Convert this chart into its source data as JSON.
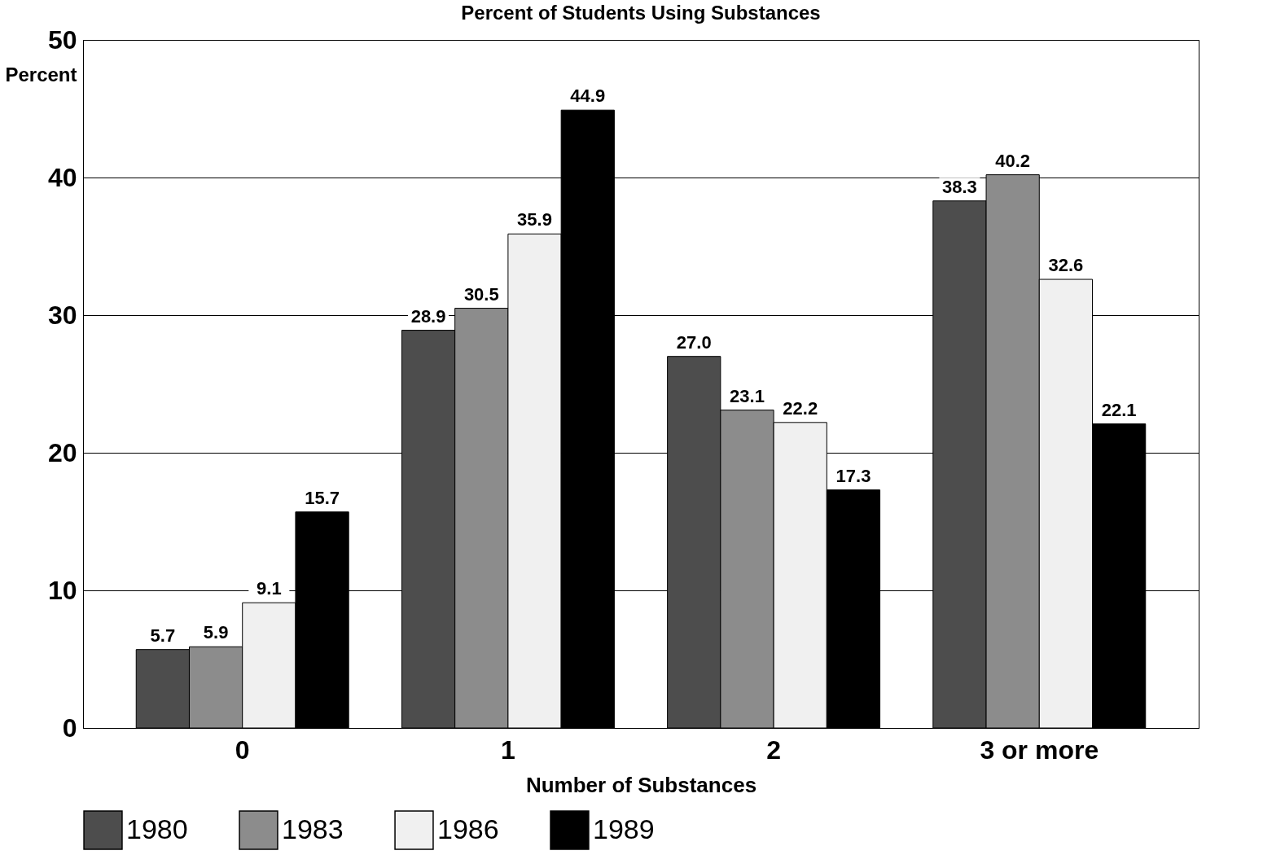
{
  "chart_data": {
    "type": "bar",
    "title": "Percent of Students Using Substances",
    "xlabel": "Number of Substances",
    "ylabel": "Percent",
    "categories": [
      "0",
      "1",
      "2",
      "3 or more"
    ],
    "series": [
      {
        "name": "1980",
        "color": "#4d4d4d",
        "values": [
          5.7,
          28.9,
          27.0,
          38.3
        ]
      },
      {
        "name": "1983",
        "color": "#8c8c8c",
        "values": [
          5.9,
          30.5,
          23.1,
          40.2
        ]
      },
      {
        "name": "1986",
        "color": "#f0f0f0",
        "values": [
          9.1,
          35.9,
          22.2,
          32.6
        ]
      },
      {
        "name": "1989",
        "color": "#000000",
        "values": [
          15.7,
          44.9,
          17.3,
          22.1
        ]
      }
    ],
    "value_labels": [
      [
        "5.7",
        "28.9",
        "27.0",
        "38.3"
      ],
      [
        "5.9",
        "30.5",
        "23.1",
        "40.2"
      ],
      [
        "9.1",
        "35.9",
        "22.2",
        "32.6"
      ],
      [
        "15.7",
        "44.9",
        "17.3",
        "22.1"
      ]
    ],
    "ylim": [
      0,
      50
    ],
    "yticks": [
      0,
      10,
      20,
      30,
      40,
      50
    ],
    "grid": "y",
    "legend": "bottom"
  }
}
